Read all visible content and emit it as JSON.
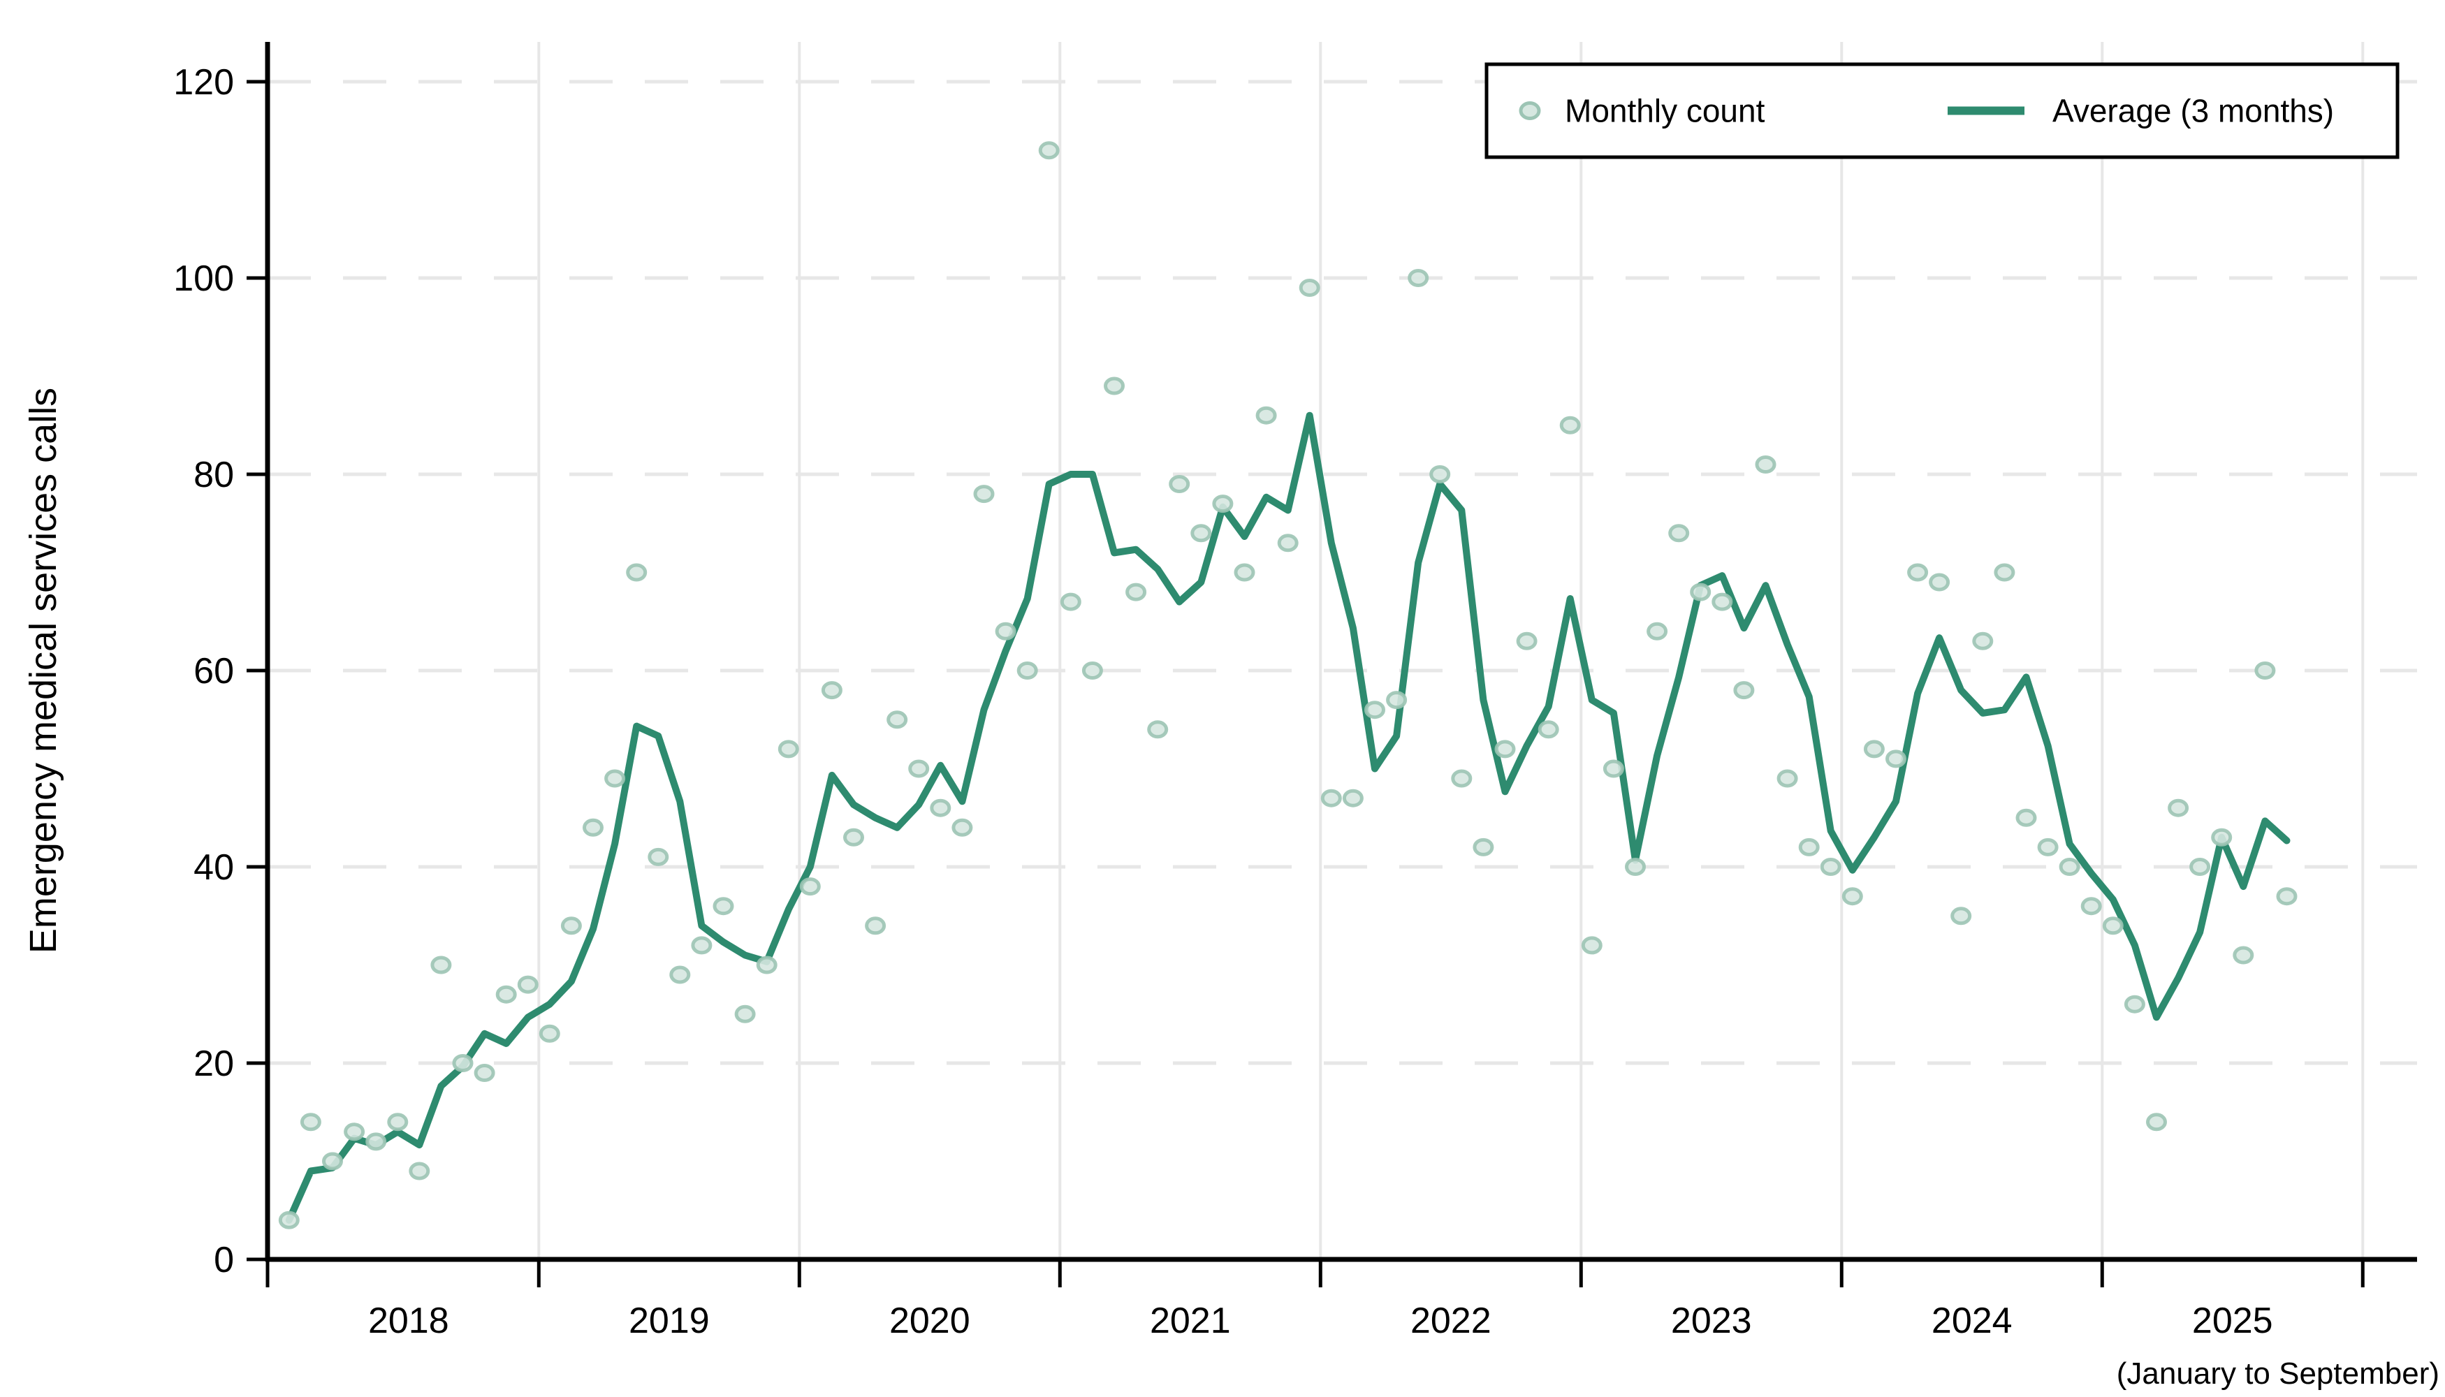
{
  "chart_data": {
    "type": "scatter",
    "title": "",
    "ylabel": "Emergency medical services calls",
    "xlabel": "",
    "x_note": "(January to September)",
    "year_labels": [
      "2018",
      "2019",
      "2020",
      "2021",
      "2022",
      "2023",
      "2024",
      "2025"
    ],
    "y_ticks": [
      0,
      20,
      40,
      60,
      80,
      100,
      120
    ],
    "ylim": [
      0,
      120
    ],
    "grid": "horizontal-dashed and vertical-solid at year boundaries",
    "legend_position": "top-right inside plot, boxed",
    "months": [
      "2018-01",
      "2018-02",
      "2018-03",
      "2018-04",
      "2018-05",
      "2018-06",
      "2018-07",
      "2018-08",
      "2018-09",
      "2018-10",
      "2018-11",
      "2018-12",
      "2019-01",
      "2019-02",
      "2019-03",
      "2019-04",
      "2019-05",
      "2019-06",
      "2019-07",
      "2019-08",
      "2019-09",
      "2019-10",
      "2019-11",
      "2019-12",
      "2020-01",
      "2020-02",
      "2020-03",
      "2020-04",
      "2020-05",
      "2020-06",
      "2020-07",
      "2020-08",
      "2020-09",
      "2020-10",
      "2020-11",
      "2020-12",
      "2021-01",
      "2021-02",
      "2021-03",
      "2021-04",
      "2021-05",
      "2021-06",
      "2021-07",
      "2021-08",
      "2021-09",
      "2021-10",
      "2021-11",
      "2021-12",
      "2022-01",
      "2022-02",
      "2022-03",
      "2022-04",
      "2022-05",
      "2022-06",
      "2022-07",
      "2022-08",
      "2022-09",
      "2022-10",
      "2022-11",
      "2022-12",
      "2023-01",
      "2023-02",
      "2023-03",
      "2023-04",
      "2023-05",
      "2023-06",
      "2023-07",
      "2023-08",
      "2023-09",
      "2023-10",
      "2023-11",
      "2023-12",
      "2024-01",
      "2024-02",
      "2024-03",
      "2024-04",
      "2024-05",
      "2024-06",
      "2024-07",
      "2024-08",
      "2024-09",
      "2024-10",
      "2024-11",
      "2024-12",
      "2025-01",
      "2025-02",
      "2025-03",
      "2025-04",
      "2025-05",
      "2025-06",
      "2025-07",
      "2025-08",
      "2025-09"
    ],
    "series": [
      {
        "name": "Monthly count",
        "type": "scatter",
        "values": [
          4,
          14,
          10,
          13,
          12,
          14,
          9,
          30,
          20,
          19,
          27,
          28,
          23,
          34,
          44,
          49,
          70,
          41,
          29,
          32,
          36,
          25,
          30,
          52,
          38,
          58,
          43,
          34,
          55,
          50,
          46,
          44,
          78,
          64,
          60,
          113,
          67,
          60,
          89,
          68,
          54,
          79,
          74,
          77,
          70,
          86,
          73,
          99,
          47,
          47,
          56,
          57,
          100,
          80,
          49,
          42,
          52,
          63,
          54,
          85,
          32,
          50,
          40,
          64,
          74,
          68,
          67,
          58,
          81,
          49,
          42,
          40,
          37,
          52,
          51,
          70,
          69,
          35,
          63,
          70,
          45,
          42,
          40,
          36,
          34,
          26,
          14,
          46,
          40,
          43,
          31,
          60,
          37
        ]
      },
      {
        "name": "Average (3 months)",
        "type": "line",
        "derivation": "trailing 3-month moving average of Monthly count (partial windows at series start)"
      }
    ],
    "colors": {
      "trend_line": "#2e8b6f",
      "marker_fill": "#d6e7e0",
      "marker_stroke": "#9cc4b4",
      "grid": "#e7e7e7",
      "axis": "#000000",
      "legend_border": "#000000",
      "background": "#ffffff"
    }
  },
  "legend": {
    "scatter_label": "Monthly count",
    "line_label": "Average (3 months)"
  },
  "axes": {
    "y_title": "Emergency medical services calls",
    "x_note": "(January to September)"
  }
}
